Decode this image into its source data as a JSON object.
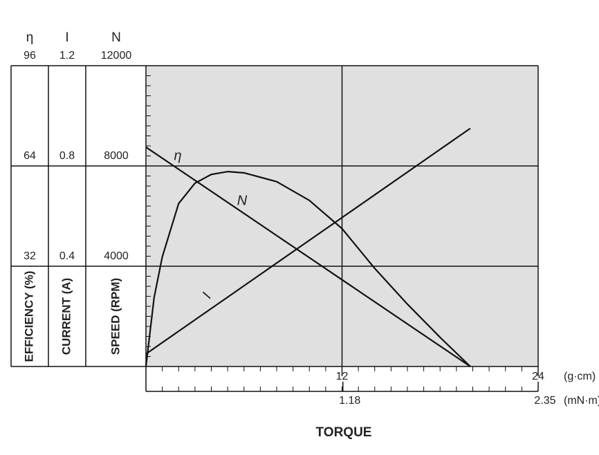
{
  "chart_data": {
    "type": "line",
    "xlabel": "TORQUE",
    "xlim": [
      0,
      24
    ],
    "xticks": [
      12,
      24
    ],
    "xunit": "(g·cm)",
    "x2lim": [
      0,
      2.35
    ],
    "x2ticks": [
      1.18,
      2.35
    ],
    "x2unit": "(mN·m)",
    "grid": true,
    "background": "#e0e0e0",
    "axes": [
      {
        "symbol": "η",
        "label": "EFFICIENCY (%)",
        "lim": [
          0,
          96
        ],
        "ticks": [
          32,
          64,
          96
        ]
      },
      {
        "symbol": "I",
        "label": "CURRENT (A)",
        "lim": [
          0,
          1.2
        ],
        "ticks": [
          0.4,
          0.8,
          1.2
        ]
      },
      {
        "symbol": "N",
        "label": "SPEED (RPM)",
        "lim": [
          0,
          12000
        ],
        "ticks": [
          4000,
          8000,
          12000
        ]
      }
    ],
    "series": [
      {
        "name": "η",
        "axis": 0,
        "color": "#111111",
        "x": [
          0,
          0.5,
          1,
          2,
          3,
          4,
          5,
          6,
          8,
          10,
          12,
          14,
          16,
          18,
          19.85
        ],
        "values": [
          0,
          22,
          35,
          52,
          58.5,
          61.3,
          62.2,
          61.8,
          59,
          53,
          44,
          31.3,
          19.9,
          9.3,
          0
        ]
      },
      {
        "name": "I",
        "axis": 1,
        "color": "#111111",
        "x": [
          0,
          19.85
        ],
        "values": [
          0.05,
          0.95
        ]
      },
      {
        "name": "N",
        "axis": 2,
        "color": "#111111",
        "x": [
          0,
          19.85
        ],
        "values": [
          8750,
          0
        ]
      }
    ]
  }
}
